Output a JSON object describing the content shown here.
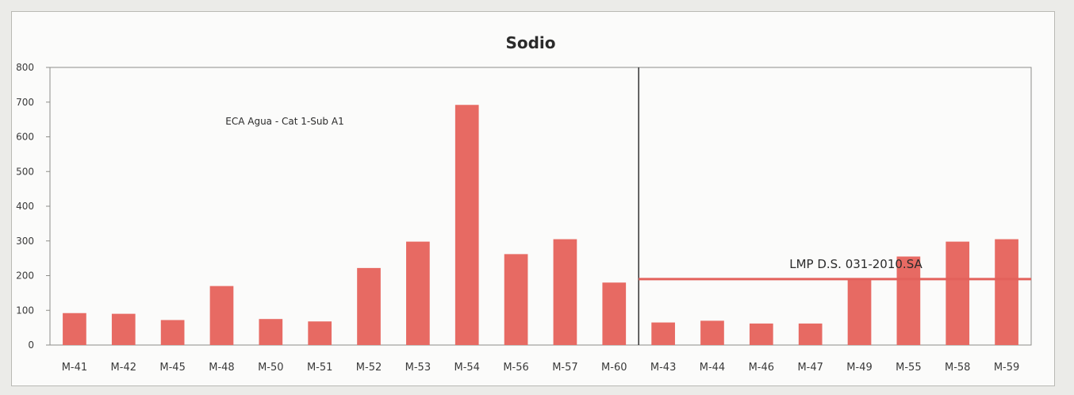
{
  "chart_data": {
    "type": "bar",
    "title": "Sodio",
    "xlabel": "",
    "ylabel": "",
    "ylim": [
      0,
      800
    ],
    "yticks": [
      0,
      100,
      200,
      300,
      400,
      500,
      600,
      700,
      800
    ],
    "grid": false,
    "legend": "none",
    "categories": [
      "M-41",
      "M-42",
      "M-45",
      "M-48",
      "M-50",
      "M-51",
      "M-52",
      "M-53",
      "M-54",
      "M-56",
      "M-57",
      "M-60",
      "M-43",
      "M-44",
      "M-46",
      "M-47",
      "M-49",
      "M-55",
      "M-58",
      "M-59"
    ],
    "values": [
      92,
      90,
      72,
      170,
      75,
      68,
      222,
      298,
      692,
      262,
      305,
      180,
      65,
      70,
      62,
      62,
      188,
      255,
      298,
      305
    ],
    "bar_color": "#e76a63",
    "divider_after_category": "M-60",
    "reference_line": {
      "label": "LMP D.S. 031-2010.SA",
      "value": 190,
      "color": "#e3625c",
      "applies_from": "M-43"
    },
    "annotations": [
      {
        "text": "ECA Agua - Cat 1-Sub A1",
        "region": "left"
      }
    ]
  }
}
